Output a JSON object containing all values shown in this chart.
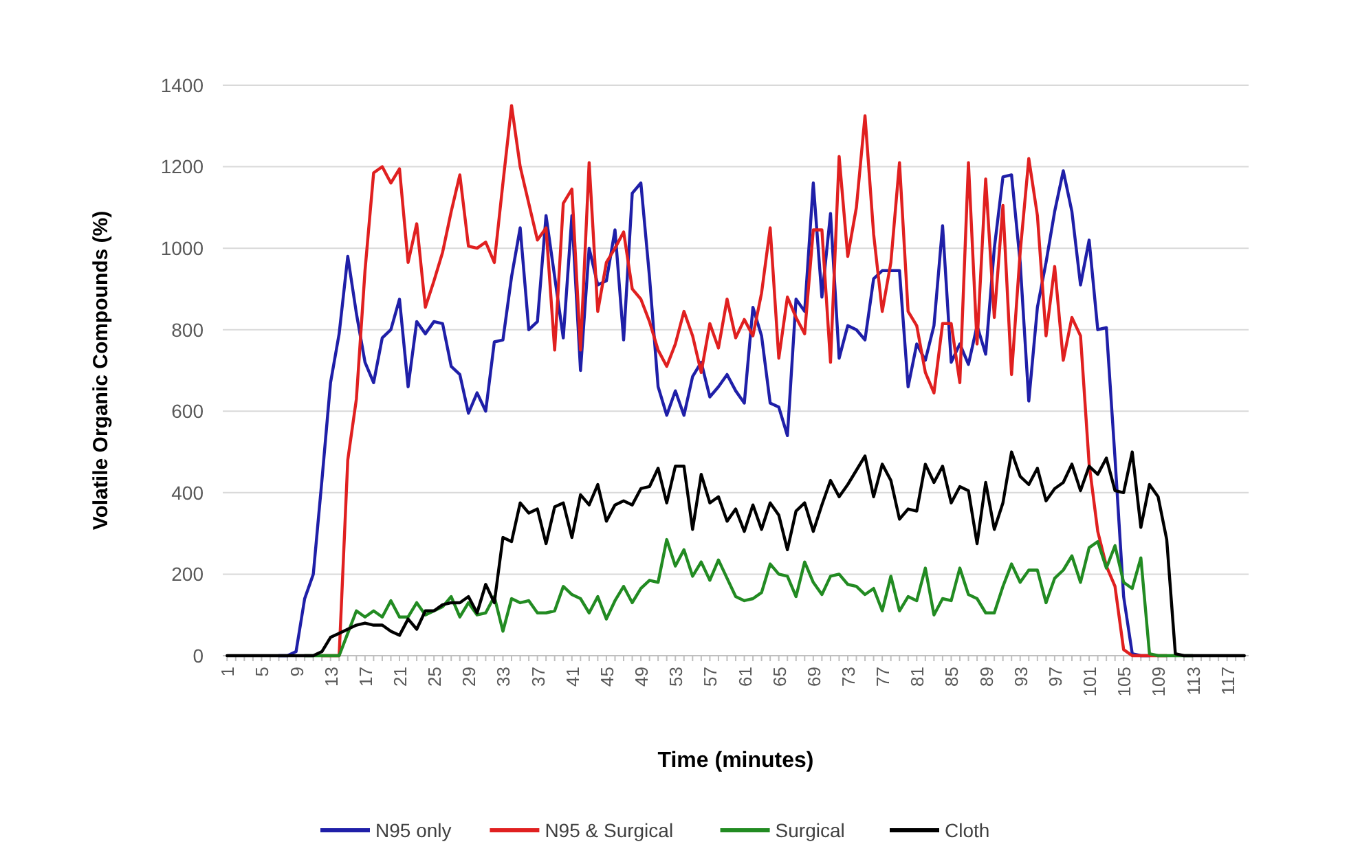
{
  "chart_data": {
    "type": "line",
    "xlabel": "Time (minutes)",
    "ylabel": "Volatile Organic Compounds (%)",
    "categories": [
      "1",
      null,
      null,
      null,
      "5",
      null,
      null,
      null,
      "9",
      null,
      null,
      null,
      "13",
      null,
      null,
      null,
      "17",
      null,
      null,
      null,
      "21",
      null,
      null,
      null,
      "25",
      null,
      null,
      null,
      "29",
      null,
      null,
      null,
      "33",
      null,
      null,
      null,
      "37",
      null,
      null,
      null,
      "41",
      null,
      null,
      null,
      "45",
      null,
      null,
      null,
      "49",
      null,
      null,
      null,
      "53",
      null,
      null,
      null,
      "57",
      null,
      null,
      null,
      "61",
      null,
      null,
      null,
      "65",
      null,
      null,
      null,
      "69",
      null,
      null,
      null,
      "73",
      null,
      null,
      null,
      "77",
      null,
      null,
      null,
      "81",
      null,
      null,
      null,
      "85",
      null,
      null,
      null,
      "89",
      null,
      null,
      null,
      "93",
      null,
      null,
      null,
      "97",
      null,
      null,
      null,
      "101",
      null,
      null,
      null,
      "105",
      null,
      null,
      null,
      "109",
      null,
      null,
      null,
      "113",
      null,
      null,
      null,
      "117",
      null,
      null
    ],
    "series": [
      {
        "name": "N95 only",
        "color": "#1f1fa8",
        "values": [
          null,
          null,
          null,
          null,
          null,
          null,
          0,
          0,
          10,
          140,
          200,
          430,
          670,
          790,
          980,
          840,
          720,
          670,
          780,
          800,
          875,
          660,
          820,
          790,
          820,
          815,
          710,
          690,
          595,
          645,
          600,
          770,
          775,
          930,
          1050,
          800,
          820,
          1080,
          930,
          780,
          1080,
          700,
          1000,
          910,
          920,
          1045,
          775,
          1135,
          1160,
          930,
          660,
          590,
          650,
          590,
          685,
          720,
          635,
          660,
          690,
          650,
          620,
          855,
          785,
          620,
          610,
          540,
          875,
          845,
          1160,
          880,
          1085,
          730,
          810,
          800,
          775,
          925,
          945,
          945,
          945,
          660,
          765,
          725,
          810,
          1055,
          720,
          765,
          715,
          810,
          740,
          1000,
          1175,
          1180,
          965,
          625,
          855,
          965,
          1090,
          1190,
          1090,
          910,
          1020,
          800,
          805,
          485,
          145,
          5,
          0,
          0,
          null,
          null,
          null,
          null,
          null,
          null,
          null,
          null,
          null,
          null,
          null
        ]
      },
      {
        "name": "N95 & Surgical",
        "color": "#e02020",
        "values": [
          null,
          null,
          null,
          null,
          null,
          null,
          null,
          null,
          null,
          null,
          null,
          0,
          0,
          0,
          480,
          630,
          945,
          1185,
          1200,
          1160,
          1195,
          965,
          1060,
          855,
          920,
          990,
          1090,
          1180,
          1005,
          1000,
          1015,
          965,
          1160,
          1350,
          1200,
          1110,
          1020,
          1050,
          750,
          1110,
          1145,
          750,
          1210,
          845,
          965,
          1000,
          1040,
          900,
          875,
          820,
          750,
          710,
          765,
          845,
          785,
          695,
          815,
          755,
          875,
          780,
          825,
          785,
          890,
          1050,
          730,
          880,
          830,
          790,
          1045,
          1045,
          720,
          1225,
          980,
          1100,
          1325,
          1035,
          845,
          965,
          1210,
          845,
          810,
          695,
          645,
          815,
          815,
          670,
          1210,
          765,
          1170,
          830,
          1105,
          690,
          990,
          1220,
          1080,
          785,
          955,
          725,
          830,
          785,
          470,
          305,
          220,
          170,
          15,
          0,
          0,
          0,
          0,
          0,
          null,
          null,
          null,
          null,
          null,
          null,
          null,
          null,
          null
        ]
      },
      {
        "name": "Surgical",
        "color": "#228b22",
        "values": [
          null,
          null,
          null,
          null,
          null,
          null,
          null,
          null,
          null,
          0,
          0,
          0,
          0,
          0,
          55,
          110,
          95,
          110,
          95,
          135,
          95,
          95,
          130,
          100,
          110,
          120,
          145,
          95,
          130,
          100,
          105,
          145,
          60,
          140,
          130,
          135,
          105,
          105,
          110,
          170,
          150,
          140,
          105,
          145,
          90,
          135,
          170,
          130,
          165,
          185,
          180,
          285,
          220,
          260,
          195,
          230,
          185,
          235,
          190,
          145,
          135,
          140,
          155,
          225,
          200,
          195,
          145,
          230,
          180,
          150,
          195,
          200,
          175,
          170,
          150,
          165,
          110,
          195,
          110,
          145,
          135,
          215,
          100,
          140,
          135,
          215,
          150,
          140,
          105,
          105,
          170,
          225,
          180,
          210,
          210,
          130,
          190,
          210,
          245,
          180,
          265,
          280,
          215,
          270,
          180,
          165,
          240,
          5,
          0,
          0,
          0,
          0,
          0,
          null,
          null,
          null,
          null,
          null,
          null
        ]
      },
      {
        "name": "Cloth",
        "color": "#000000",
        "values": [
          0,
          0,
          0,
          0,
          0,
          0,
          0,
          0,
          0,
          0,
          0,
          10,
          45,
          55,
          65,
          75,
          80,
          75,
          75,
          60,
          50,
          90,
          65,
          110,
          110,
          125,
          130,
          130,
          145,
          105,
          175,
          130,
          290,
          280,
          375,
          350,
          360,
          275,
          365,
          375,
          290,
          395,
          370,
          420,
          330,
          370,
          380,
          370,
          410,
          415,
          460,
          375,
          465,
          465,
          310,
          445,
          375,
          390,
          330,
          360,
          305,
          370,
          310,
          375,
          345,
          260,
          355,
          375,
          305,
          370,
          430,
          390,
          420,
          455,
          490,
          390,
          470,
          430,
          335,
          360,
          355,
          470,
          425,
          465,
          375,
          415,
          405,
          275,
          425,
          310,
          375,
          500,
          440,
          420,
          460,
          380,
          410,
          425,
          470,
          405,
          465,
          445,
          485,
          405,
          400,
          500,
          315,
          420,
          390,
          285,
          5,
          0,
          0,
          0,
          0,
          0,
          0,
          0,
          0
        ]
      }
    ],
    "ylim": [
      0,
      1400
    ],
    "yticks": [
      0,
      200,
      400,
      600,
      800,
      1000,
      1200,
      1400
    ],
    "grid": "y",
    "legend": "bottom"
  }
}
